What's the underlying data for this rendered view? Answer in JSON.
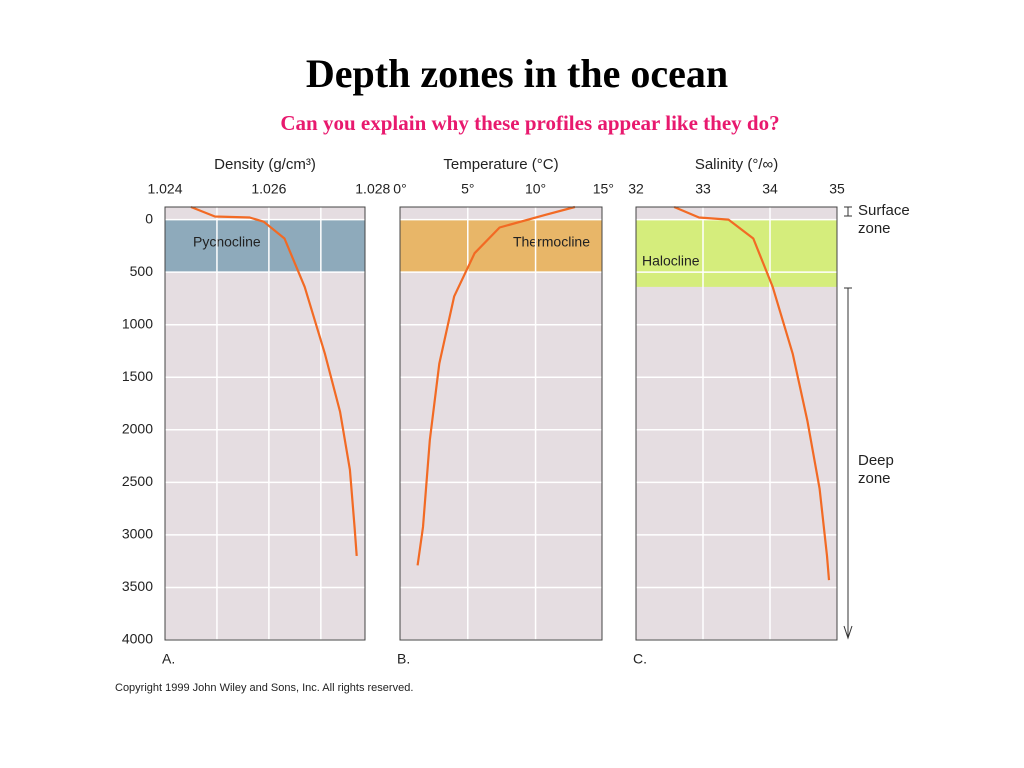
{
  "title": "Depth zones in the ocean",
  "subtitle": "Can you explain why these profiles appear like they do?",
  "copyright": "Copyright 1999 John Wiley and Sons, Inc. All rights reserved.",
  "side_labels": {
    "surface": "Surface zone",
    "deep": "Deep zone"
  },
  "chart_data": [
    {
      "type": "line",
      "xlabel": "Density (g/cm³)",
      "panel_label": "A.",
      "xlim": [
        1.024,
        1.02785
      ],
      "xticks": [
        1.024,
        1.026,
        1.028
      ],
      "xgrid": [
        1.025,
        1.026,
        1.027
      ],
      "ylim": [
        -120,
        4000
      ],
      "y_inverted": true,
      "yticks": [
        0,
        500,
        1000,
        1500,
        2000,
        2500,
        3000,
        3500,
        4000
      ],
      "grid": true,
      "zone": {
        "label": "Pycnocline",
        "from": 0,
        "to": 500,
        "color": "#8eaabb"
      },
      "color": "#f26a24",
      "x": [
        1.0245,
        1.02496,
        1.02563,
        1.0259,
        1.0263,
        1.02669,
        1.02708,
        1.02737,
        1.02756,
        1.02765,
        1.02769
      ],
      "values": [
        -120,
        -30,
        -20,
        20,
        180,
        640,
        1280,
        1830,
        2380,
        2930,
        3200
      ]
    },
    {
      "type": "line",
      "xlabel": "Temperature (°C)",
      "panel_label": "B.",
      "xlim": [
        0,
        14.9
      ],
      "xticks": [
        {
          "value": 0,
          "label": "0°"
        },
        {
          "value": 5,
          "label": "5°"
        },
        {
          "value": 10,
          "label": "10°"
        },
        {
          "value": 15,
          "label": "15°"
        }
      ],
      "xgrid": [
        5,
        10
      ],
      "ylim": [
        -120,
        4000
      ],
      "y_inverted": true,
      "yticks": [
        0,
        500,
        1000,
        1500,
        2000,
        2500,
        3000,
        3500,
        4000
      ],
      "grid": true,
      "zone": {
        "label": "Thermocline",
        "from": 0,
        "to": 500,
        "color": "#e8b668"
      },
      "color": "#f26a24",
      "x": [
        12.9,
        10.7,
        7.35,
        5.5,
        4.0,
        2.9,
        2.2,
        1.7,
        1.3
      ],
      "values": [
        -120,
        -45,
        75,
        320,
        730,
        1370,
        2100,
        2925,
        3290
      ]
    },
    {
      "type": "line",
      "xlabel": "Salinity (°/∞)",
      "panel_label": "C.",
      "xlim": [
        32,
        35
      ],
      "xticks": [
        32,
        33,
        34,
        35
      ],
      "xgrid": [
        33,
        34
      ],
      "ylim": [
        -120,
        4000
      ],
      "y_inverted": true,
      "yticks": [
        0,
        500,
        1000,
        1500,
        2000,
        2500,
        3000,
        3500,
        4000
      ],
      "grid": true,
      "zone": {
        "label": "Halocline",
        "from": 0,
        "to": 640,
        "color": "#d5ed7c"
      },
      "color": "#f26a24",
      "x": [
        32.57,
        32.94,
        33.38,
        33.75,
        34.04,
        34.34,
        34.56,
        34.74,
        34.85,
        34.88
      ],
      "values": [
        -120,
        -20,
        0,
        180,
        640,
        1280,
        1920,
        2560,
        3200,
        3430
      ]
    }
  ]
}
